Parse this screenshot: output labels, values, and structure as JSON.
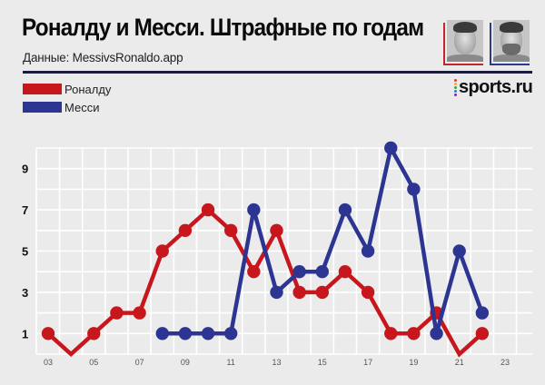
{
  "header": {
    "title": "Роналду и Месси. Штрафные по годам",
    "subtitle": "Данные: MessivsRonaldo.app",
    "logo_text": "sports.ru",
    "logo_dot_colors": [
      "#e53935",
      "#f9a825",
      "#43a047",
      "#1e88e5",
      "#8e24aa"
    ],
    "rule_color": "#1b1b3a"
  },
  "photos": [
    {
      "name": "Роналду",
      "frame_color": "#c0272d"
    },
    {
      "name": "Месси",
      "frame_color": "#2e3a8c"
    }
  ],
  "legend": [
    {
      "label": "Роналду",
      "color": "#c8161d"
    },
    {
      "label": "Месси",
      "color": "#2d3592"
    }
  ],
  "chart_data": {
    "type": "line",
    "title": "Роналду и Месси. Штрафные по годам",
    "subtitle": "Данные: MessivsRonaldo.app",
    "xlabel": "",
    "ylabel": "",
    "x": [
      2003,
      2004,
      2005,
      2006,
      2007,
      2008,
      2009,
      2010,
      2011,
      2012,
      2013,
      2014,
      2015,
      2016,
      2017,
      2018,
      2019,
      2020,
      2021,
      2022
    ],
    "x_tick_labels": [
      "03",
      "05",
      "07",
      "09",
      "11",
      "13",
      "15",
      "17",
      "19",
      "21",
      "23"
    ],
    "y_tick_labels": [
      "1",
      "3",
      "5",
      "7",
      "9"
    ],
    "xlim": [
      2002.5,
      2024.3
    ],
    "ylim": [
      0,
      10
    ],
    "grid": true,
    "legend_position": "top-left",
    "series": [
      {
        "name": "Роналду",
        "color": "#c8161d",
        "x": [
          2003,
          2004,
          2005,
          2006,
          2007,
          2008,
          2009,
          2010,
          2011,
          2012,
          2013,
          2014,
          2015,
          2016,
          2017,
          2018,
          2019,
          2020,
          2021,
          2022
        ],
        "values": [
          1,
          0,
          1,
          2,
          2,
          5,
          6,
          7,
          6,
          4,
          6,
          3,
          3,
          4,
          3,
          1,
          1,
          2,
          0,
          1
        ]
      },
      {
        "name": "Месси",
        "color": "#2d3592",
        "x": [
          2008,
          2009,
          2010,
          2011,
          2012,
          2013,
          2014,
          2015,
          2016,
          2017,
          2018,
          2019,
          2020,
          2021,
          2022
        ],
        "values": [
          1,
          1,
          1,
          1,
          7,
          3,
          4,
          4,
          7,
          5,
          10,
          8,
          1,
          5,
          2
        ]
      }
    ]
  }
}
